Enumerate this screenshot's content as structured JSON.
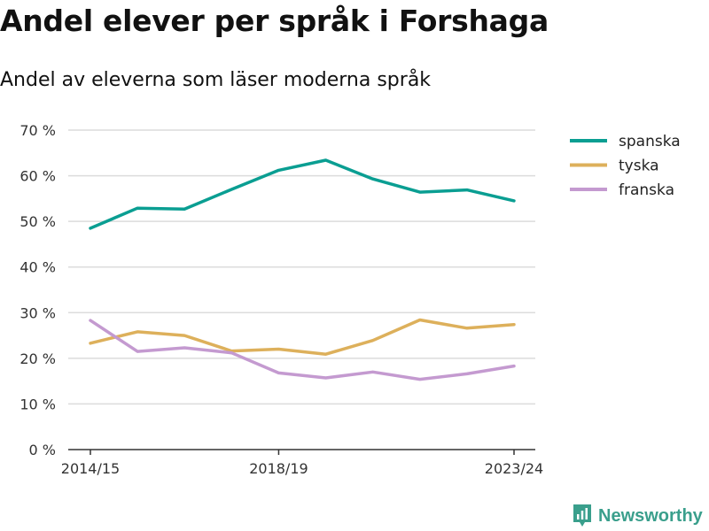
{
  "title": "Andel elever per språk i Forshaga",
  "subtitle": "Andel av eleverna som läser moderna språk",
  "brand": {
    "name": "Newsworthy",
    "icon": "bar-chart-pin-icon",
    "color": "#3a9f8c"
  },
  "chart_data": {
    "type": "line",
    "x": [
      "2014/15",
      "2015/16",
      "2016/17",
      "2017/18",
      "2018/19",
      "2019/20",
      "2020/21",
      "2021/22",
      "2022/23",
      "2023/24"
    ],
    "x_tick_labels": [
      "2014/15",
      "2018/19",
      "2023/24"
    ],
    "y_tick_labels": [
      "0 %",
      "10 %",
      "20 %",
      "30 %",
      "40 %",
      "50 %",
      "60 %",
      "70 %"
    ],
    "ylim": [
      0,
      70
    ],
    "grid": true,
    "legend_position": "top-right",
    "series": [
      {
        "name": "spanska",
        "color": "#0a9e92",
        "values": [
          48.5,
          52.9,
          52.7,
          57.0,
          61.2,
          63.4,
          59.3,
          56.4,
          56.9,
          54.5
        ]
      },
      {
        "name": "tyska",
        "color": "#ddb05b",
        "values": [
          23.3,
          25.8,
          25.0,
          21.6,
          22.0,
          20.9,
          23.9,
          28.4,
          26.6,
          27.4
        ]
      },
      {
        "name": "franska",
        "color": "#c49ad0",
        "values": [
          28.3,
          21.5,
          22.3,
          21.2,
          16.8,
          15.7,
          17.0,
          15.4,
          16.6,
          18.3
        ]
      }
    ]
  }
}
